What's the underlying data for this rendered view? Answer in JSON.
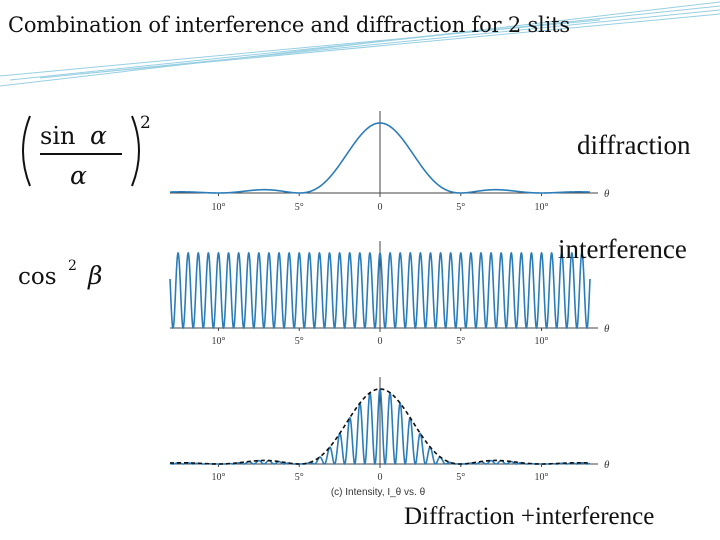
{
  "slide": {
    "title": "Combination of interference and diffraction for 2 slits",
    "label_diffraction": "diffraction",
    "label_interference": "interference",
    "label_combined": "Diffraction +interference"
  },
  "formulas": {
    "diffraction_func": "sin",
    "diffraction_var": "α",
    "diffraction_exp": "2",
    "interference_func": "cos",
    "interference_exp": "2",
    "interference_var": "β"
  },
  "chart_data": [
    {
      "type": "line",
      "name": "diffraction",
      "function": "(sin α / α)^2",
      "x_unit": "degrees",
      "x_range": [
        -13,
        13
      ],
      "ticks": [
        -10,
        -5,
        0,
        5,
        10
      ],
      "tick_labels": [
        "10°",
        "5°",
        "0",
        "5°",
        "10°"
      ],
      "axis_label": "θ",
      "first_zero_deg": 5,
      "peak": 1,
      "color": "#2b7cb8"
    },
    {
      "type": "line",
      "name": "interference",
      "function": "cos² β",
      "x_unit": "degrees",
      "x_range": [
        -13,
        13
      ],
      "ticks": [
        -10,
        -5,
        0,
        5,
        10
      ],
      "tick_labels": [
        "10°",
        "5°",
        "0",
        "5°",
        "10°"
      ],
      "axis_label": "θ",
      "fringe_spacing_deg": 0.625,
      "peak": 1,
      "color": "#2b7cb8"
    },
    {
      "type": "line",
      "name": "combined",
      "function": "cos² β · (sin α / α)²",
      "x_unit": "degrees",
      "x_range": [
        -13,
        13
      ],
      "ticks": [
        -10,
        -5,
        0,
        5,
        10
      ],
      "tick_labels": [
        "10°",
        "5°",
        "0",
        "5°",
        "10°"
      ],
      "axis_label": "θ",
      "envelope": "dashed diffraction envelope",
      "caption": "(c) Intensity, I_θ vs. θ",
      "color": "#2b7cb8"
    }
  ]
}
